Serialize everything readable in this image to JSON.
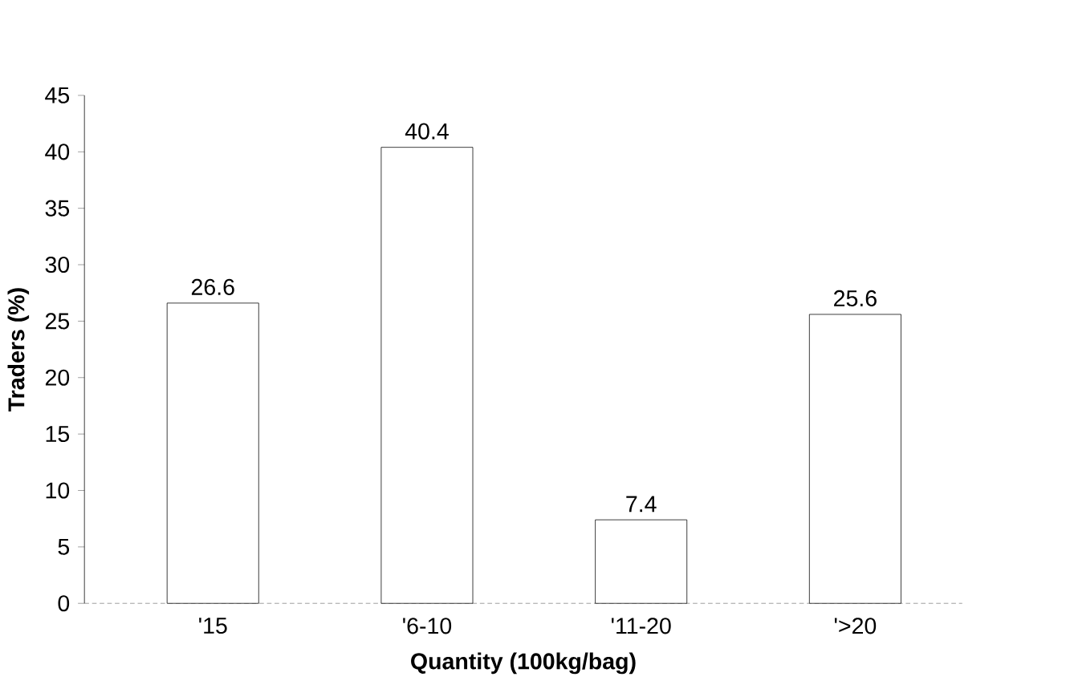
{
  "chart_data": {
    "type": "bar",
    "xlabel": "Quantity (100kg/bag)",
    "ylabel": "Traders (%)",
    "categories": [
      "'15",
      "'6-10",
      "'11-20",
      "'>20"
    ],
    "values": [
      26.6,
      40.4,
      7.4,
      25.6
    ],
    "color": "#ffffff",
    "ylim": [
      0,
      45
    ],
    "yticks": [
      0,
      5,
      10,
      15,
      20,
      25,
      30,
      35,
      40,
      45
    ],
    "data_labels": true
  }
}
